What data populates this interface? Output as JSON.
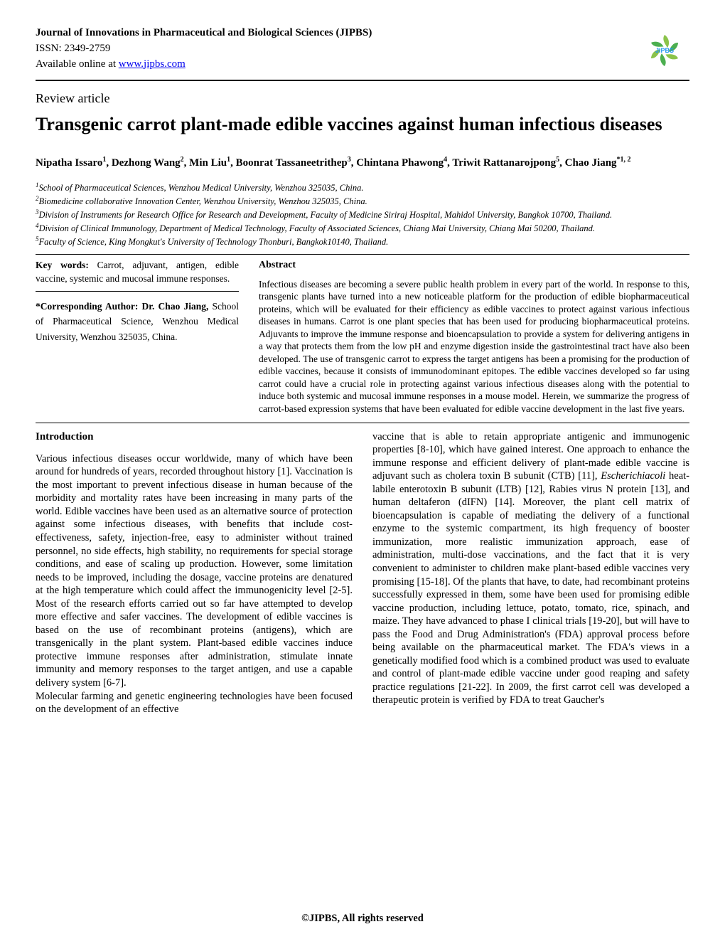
{
  "header": {
    "journal_name": "Journal of Innovations in Pharmaceutical and Biological Sciences (JIPBS)",
    "issn_line": "ISSN: 2349-2759",
    "online_prefix": "Available online at ",
    "online_url": "www.jipbs.com",
    "logo_text": "JIPBS",
    "logo_colors": {
      "green_light": "#8bc34a",
      "green_dark": "#4caf50",
      "blue": "#2196f3"
    }
  },
  "article": {
    "type": "Review article",
    "title": "Transgenic carrot plant-made edible vaccines against human infectious diseases",
    "authors_html": "Nipatha Issaro<sup>1</sup>, Dezhong Wang<sup>2</sup>, Min Liu<sup>1</sup>, Boonrat Tassaneetrithep<sup>3</sup>, Chintana Phawong<sup>4</sup>, Triwit Rattanarojpong<sup>5</sup>, Chao Jiang<sup>*1, 2</sup>",
    "affiliations": [
      "<sup>1</sup>School of Pharmaceutical Sciences, Wenzhou Medical University, Wenzhou 325035, China.",
      "<sup>2</sup>Biomedicine collaborative Innovation Center, Wenzhou University, Wenzhou 325035, China.",
      "<sup>3</sup>Division of Instruments for Research Office for Research and Development, Faculty of Medicine Siriraj Hospital, Mahidol University, Bangkok 10700, Thailand.",
      "<sup>4</sup>Division of Clinical Immunology, Department of Medical Technology, Faculty of Associated Sciences, Chiang Mai University, Chiang Mai 50200, Thailand.",
      "<sup>5</sup>Faculty of Science, King Mongkut's University of Technology Thonburi, Bangkok10140, Thailand."
    ]
  },
  "meta": {
    "keywords_label": "Key words:",
    "keywords_text": " Carrot, adjuvant, antigen, edible vaccine, systemic and mucosal immune responses.",
    "corr_label": "*Corresponding Author: Dr. Chao Jiang,",
    "corr_text": " School of Pharmaceutical Science, Wenzhou Medical University, Wenzhou 325035, China."
  },
  "abstract": {
    "heading": "Abstract",
    "text": "Infectious diseases are becoming a severe public health problem in every part of the world. In response to this, transgenic plants have turned into a new noticeable platform for the production of edible biopharmaceutical proteins, which will be evaluated for their efficiency as edible vaccines to protect against various infectious diseases in humans. Carrot is one plant species that has been used for producing biopharmaceutical proteins. Adjuvants to improve the immune response and bioencapsulation to provide a system for delivering antigens in a way that protects them from the low pH and enzyme digestion inside the gastrointestinal tract have also been developed. The use of transgenic carrot to express the target antigens has been a promising for the production of edible vaccines, because it consists of immunodominant epitopes. The edible vaccines developed so far using carrot could have a crucial role in protecting against various infectious diseases along with the potential to induce both systemic and mucosal immune responses in a mouse model. Herein, we summarize the progress of carrot-based expression systems that have been evaluated for edible vaccine development in the last five years."
  },
  "body": {
    "intro_heading": "Introduction",
    "col1_p1": "Various infectious diseases occur worldwide, many of which have been around for hundreds of years, recorded throughout history [1]. Vaccination is the most important to prevent infectious disease in human because of the morbidity and mortality rates have been increasing in many parts of the world. Edible vaccines have been used as an alternative source of protection against some infectious diseases, with benefits that include cost-effectiveness, safety, injection-free, easy to administer without trained personnel, no side effects, high stability, no requirements for special storage conditions, and ease of scaling up production. However, some limitation needs to be improved, including the dosage, vaccine proteins are denatured at the high temperature which could affect the immunogenicity level [2-5]. Most of the research efforts carried out so far have attempted to develop more effective and safer vaccines. The development of edible vaccines is based on the use of recombinant proteins (antigens), which are transgenically in the plant system. Plant-based edible vaccines induce protective immune responses after administration, stimulate innate immunity and memory responses to the target antigen, and use a capable delivery system [6-7].",
    "col1_p2": "Molecular farming and genetic engineering technologies have been focused on the development of an effective",
    "col2_p1_pre": "vaccine that is able to retain appropriate antigenic and immunogenic properties [8-10], which have gained interest. One approach to enhance the immune response and efficient delivery of plant-made edible vaccine is adjuvant such as cholera toxin B subunit (CTB) [11], ",
    "col2_italic": "Escherichiacoli",
    "col2_p1_post": " heat-labile enterotoxin B subunit (LTB) [12], Rabies virus N protein [13], and human deltaferon (dIFN) [14]. Moreover, the plant cell matrix of bioencapsulation is capable of mediating the delivery of a functional enzyme to the systemic compartment, its high frequency of booster immunization, more realistic immunization approach, ease of administration, multi-dose vaccinations, and the fact that it is very convenient to administer to children make plant-based edible vaccines very promising [15-18]. Of the plants that have, to date, had recombinant proteins successfully expressed in them, some have been used for promising edible vaccine production, including lettuce, potato, tomato, rice, spinach, and maize. They have advanced to phase I clinical trials [19-20], but will have to pass the Food and Drug Administration's (FDA) approval process before being available on the pharmaceutical market. The FDA's views in a genetically modified food which is a combined product was used to evaluate and control of plant-made edible vaccine under good reaping and safety practice regulations [21-22]. In 2009, the first carrot cell was developed a therapeutic protein is verified by FDA to treat Gaucher's"
  },
  "footer": "©JIPBS, All rights reserved"
}
